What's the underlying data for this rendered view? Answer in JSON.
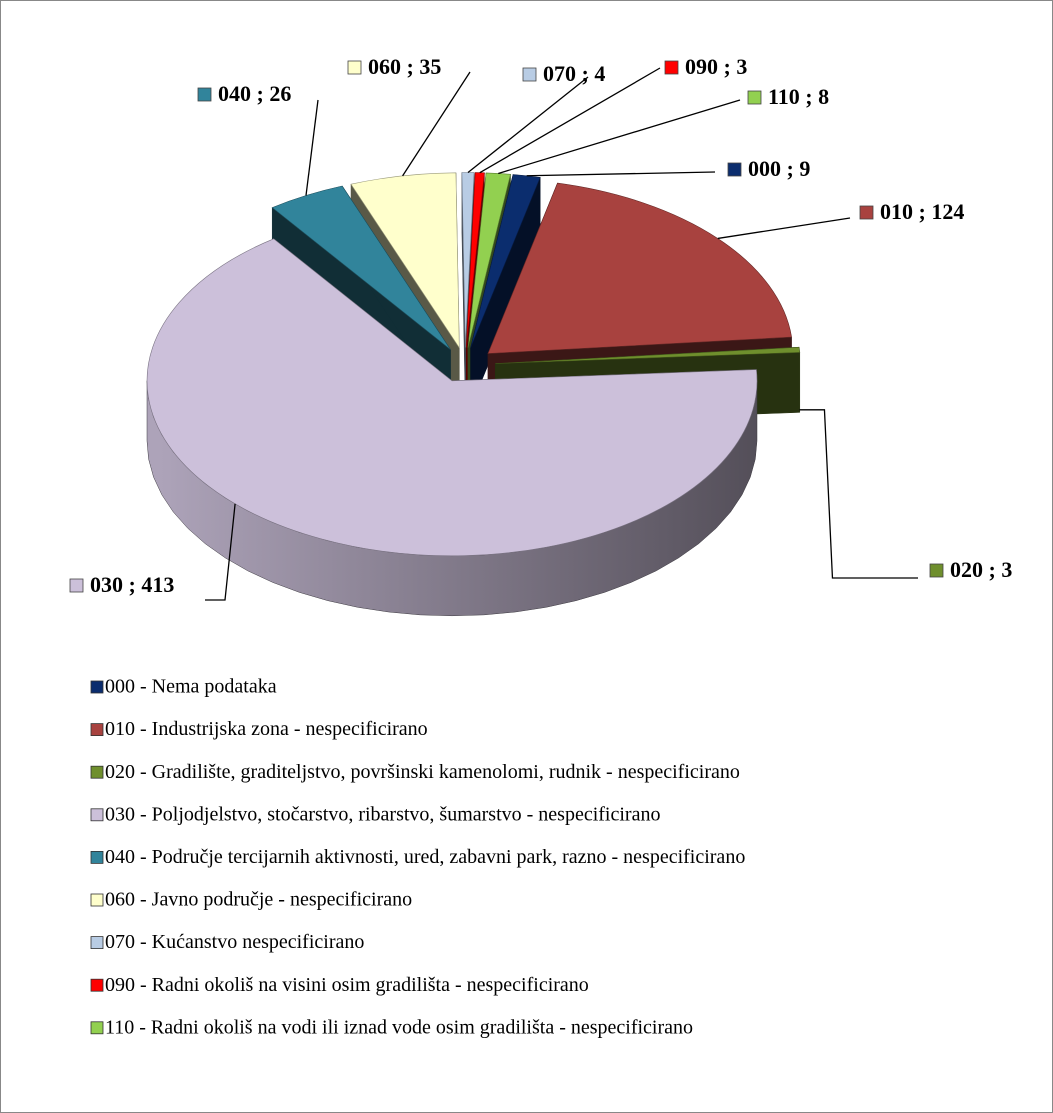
{
  "chart_data": {
    "type": "pie3d",
    "categories": [
      "000 - Nema podataka",
      "010 - Industrijska zona - nespecificirano",
      "020 - Gradilište, graditeljstvo, površinski kamenolomi, rudnik - nespecificirano",
      "030 - Poljodjelstvo, stočarstvo, ribarstvo, šumarstvo - nespecificirano",
      "040 - Područje tercijarnih aktivnosti, ured, zabavni park, razno - nespecificirano",
      "060 - Javno područje - nespecificirano",
      "070 - Kućanstvo nespecificirano",
      "090 - Radni okoliš na visini osim gradilišta - nespecificirano",
      "110 - Radni okoliš na vodi ili iznad vode osim gradilišta - nespecificirano"
    ],
    "values": [
      9,
      124,
      3,
      413,
      26,
      35,
      4,
      3,
      8
    ],
    "value_labels": [
      "000 ; 9",
      "010 ; 124",
      "020 ; 3",
      "030 ; 413",
      "040 ; 26",
      "060 ; 35",
      "070 ; 4",
      "090 ; 3",
      "110 ; 8"
    ],
    "colors": [
      "#0b2d6e",
      "#a8423f",
      "#6f8f2d",
      "#ccc0da",
      "#31849b",
      "#ffffcc",
      "#b8cce4",
      "#ff0000",
      "#92d050"
    ],
    "legend": "bottom"
  }
}
